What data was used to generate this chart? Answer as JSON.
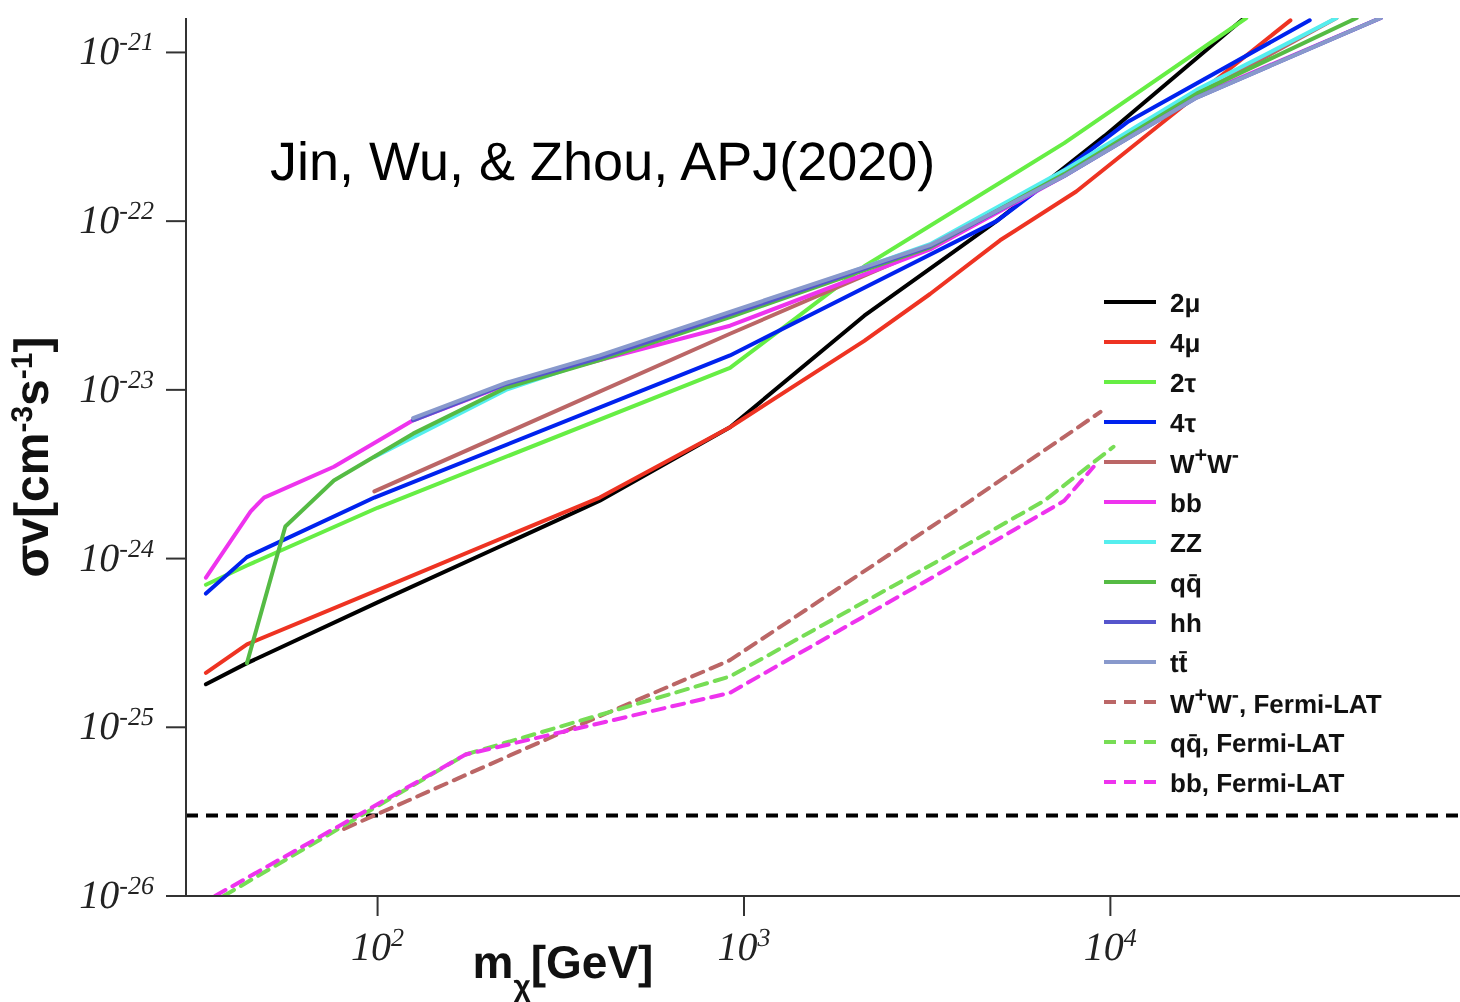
{
  "chart_data": {
    "type": "line",
    "xlabel": "m$_{χ}$[GeV]",
    "ylabel": "σv[cm$^{-3}$s$^{-1}$]",
    "annotations": [
      "Jin, Wu, & Zhou, APJ(2020)"
    ],
    "log": "xy",
    "grid": false,
    "legend": "right",
    "marker": "none",
    "xlim": [
      30,
      90000
    ],
    "ylim": [
      1e-26,
      1.6e-21
    ],
    "xticks": [
      {
        "value": 100,
        "label": "10$^{2}$"
      },
      {
        "value": 1000,
        "label": "10$^{3}$"
      },
      {
        "value": 10000,
        "label": "10$^{4}$"
      }
    ],
    "yticks": [
      {
        "value": 1e-26,
        "label": "10$^{-26}$"
      },
      {
        "value": 1e-25,
        "label": "10$^{-25}$"
      },
      {
        "value": 1e-24,
        "label": "10$^{-24}$"
      },
      {
        "value": 1e-23,
        "label": "10$^{-23}$"
      },
      {
        "value": 1e-22,
        "label": "10$^{-22}$"
      },
      {
        "value": 1e-21,
        "label": "10$^{-21}$"
      }
    ],
    "ref_lines": [
      {
        "axis": "y",
        "value": 3e-26,
        "color": "#000000",
        "line_style": "dashed"
      }
    ],
    "series": [
      {
        "name": "2μ",
        "color": "#000000",
        "line_style": "solid",
        "x": [
          34,
          44,
          100,
          404,
          916,
          2130,
          4890,
          9640,
          23200
        ],
        "values": [
          1.8e-25,
          2.4e-25,
          5.5e-25,
          2.2e-24,
          6e-24,
          2.75e-23,
          1e-22,
          3.2e-22,
          1.6e-21
        ]
      },
      {
        "name": "4μ",
        "color": "#ee3322",
        "line_style": "solid",
        "x": [
          34,
          44,
          100,
          404,
          916,
          2130,
          3220,
          5000,
          8070,
          31000
        ],
        "values": [
          2.1e-25,
          3.1e-25,
          6.5e-25,
          2.3e-24,
          6e-24,
          1.95e-23,
          3.7e-23,
          7.7e-23,
          1.5e-22,
          1.55e-21
        ]
      },
      {
        "name": "2τ",
        "color": "#66ee44",
        "line_style": "solid",
        "x": [
          34,
          44,
          100,
          916,
          2130,
          7480,
          23500
        ],
        "values": [
          7e-25,
          9.1e-25,
          2e-24,
          1.35e-23,
          5.4e-23,
          2.9e-22,
          1.6e-21
        ]
      },
      {
        "name": "4τ",
        "color": "#0022ee",
        "line_style": "solid",
        "x": [
          34,
          44,
          98,
          916,
          4890,
          11200,
          35000
        ],
        "values": [
          6.2e-25,
          1.02e-24,
          2.3e-24,
          1.6e-23,
          1e-22,
          3.9e-22,
          1.55e-21
        ]
      },
      {
        "name": "W$^{+}$W$^{-}$",
        "color": "#bb6666",
        "line_style": "solid",
        "x": [
          98,
          916,
          3220,
          7480,
          17200,
          41400
        ],
        "values": [
          2.5e-24,
          2.15e-23,
          7e-23,
          1.9e-22,
          5.6e-22,
          1.6e-21
        ]
      },
      {
        "name": "bb",
        "color": "#ee33ee",
        "line_style": "solid",
        "x": [
          34,
          45,
          49,
          76,
          125,
          224,
          404,
          916,
          3220,
          7480,
          17200,
          54700
        ],
        "values": [
          7.7e-25,
          1.9e-24,
          2.3e-24,
          3.5e-24,
          6.6e-24,
          1.07e-23,
          1.5e-23,
          2.4e-23,
          6.8e-23,
          1.85e-22,
          5.5e-22,
          1.6e-21
        ]
      },
      {
        "name": "ZZ",
        "color": "#55eeee",
        "line_style": "solid",
        "x": [
          98,
          224,
          916,
          3220,
          7480,
          17200,
          41400
        ],
        "values": [
          4e-24,
          1e-23,
          2.8e-23,
          7.3e-23,
          2e-22,
          6e-22,
          1.6e-21
        ]
      },
      {
        "name": "qq̄",
        "color": "#55bb44",
        "line_style": "solid",
        "x": [
          44,
          56,
          76,
          125,
          224,
          404,
          916,
          3220,
          7480,
          17200,
          47000
        ],
        "values": [
          2.4e-25,
          1.55e-24,
          2.9e-24,
          5.5e-24,
          1.03e-23,
          1.5e-23,
          2.7e-23,
          7e-23,
          1.9e-22,
          5.7e-22,
          1.6e-21
        ]
      },
      {
        "name": "hh",
        "color": "#5555cc",
        "line_style": "solid",
        "x": [
          125,
          224,
          404,
          916,
          3220,
          7480,
          17200,
          54700
        ],
        "values": [
          6.6e-24,
          1.08e-23,
          1.55e-23,
          2.8e-23,
          7.1e-23,
          1.85e-22,
          5.4e-22,
          1.6e-21
        ]
      },
      {
        "name": "tt̄",
        "color": "#8899cc",
        "line_style": "solid",
        "x": [
          125,
          224,
          404,
          916,
          3220,
          7480,
          17200,
          54700
        ],
        "values": [
          6.8e-24,
          1.1e-23,
          1.6e-23,
          2.9e-23,
          7.2e-23,
          1.85e-22,
          5.4e-22,
          1.6e-21
        ]
      },
      {
        "name": "W$^{+}$W$^{-}$, Fermi-LAT",
        "color": "#bb6666",
        "line_style": "dashed",
        "x": [
          81,
          300,
          916,
          4150,
          9400
        ],
        "values": [
          2.5e-26,
          8.8e-26,
          2.5e-25,
          2.2e-24,
          7.4e-24
        ]
      },
      {
        "name": "qq̄, Fermi-LAT",
        "color": "#77dd55",
        "line_style": "dashed",
        "x": [
          38,
          174,
          916,
          3220,
          6600,
          10200
        ],
        "values": [
          1e-26,
          6.9e-26,
          2e-25,
          9.1e-25,
          2.2e-24,
          4.6e-24
        ]
      },
      {
        "name": "bb, Fermi-LAT",
        "color": "#ee33ee",
        "line_style": "dashed",
        "x": [
          36,
          174,
          916,
          3220,
          7480,
          9000
        ],
        "values": [
          1e-26,
          6.9e-26,
          1.6e-25,
          7.6e-25,
          2.2e-24,
          3.5e-24
        ]
      }
    ]
  }
}
